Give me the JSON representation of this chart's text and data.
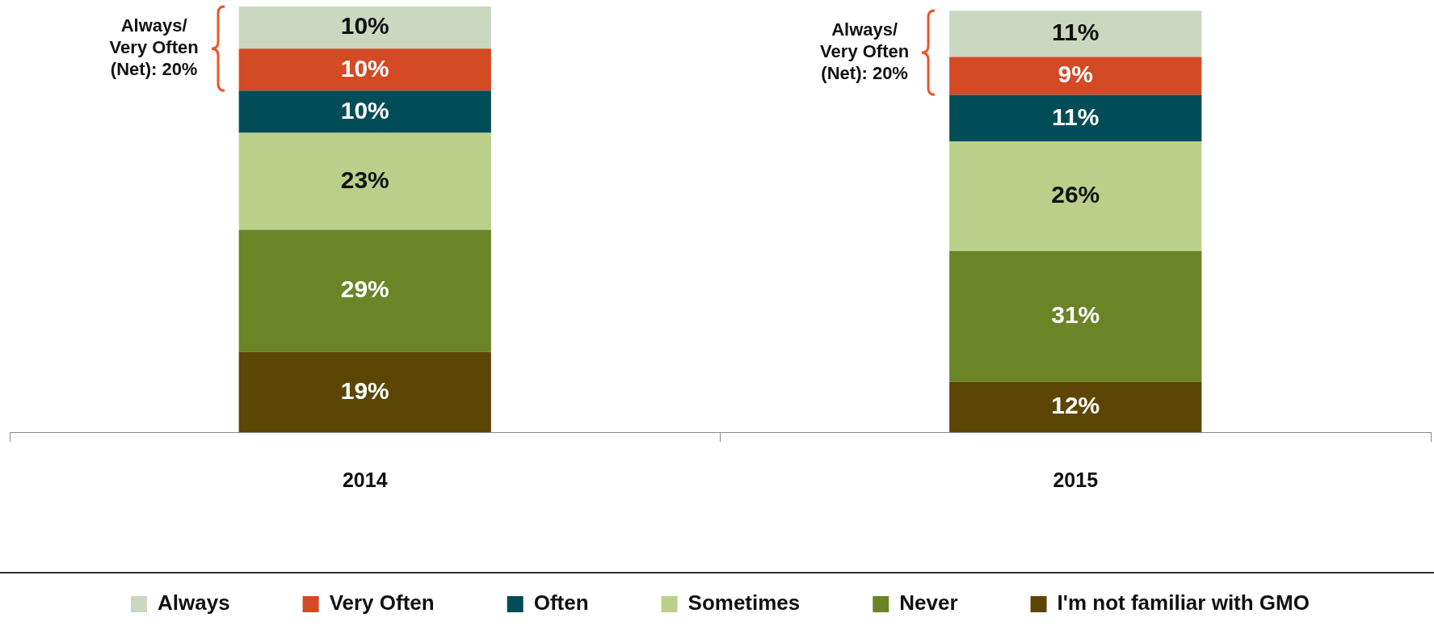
{
  "chart_data": {
    "type": "bar",
    "stacked": true,
    "categories": [
      "2014",
      "2015"
    ],
    "series": [
      {
        "name": "I'm not familiar with GMO",
        "color": "#5c4505",
        "values": [
          19,
          12
        ],
        "value_labels": [
          "19%",
          "12%"
        ]
      },
      {
        "name": "Never",
        "color": "#6a8426",
        "values": [
          29,
          31
        ],
        "value_labels": [
          "29%",
          "31%"
        ]
      },
      {
        "name": "Sometimes",
        "color": "#bccf8a",
        "values": [
          23,
          26
        ],
        "value_labels": [
          "23%",
          "26%"
        ]
      },
      {
        "name": "Often",
        "color": "#004d57",
        "values": [
          10,
          11
        ],
        "value_labels": [
          "10%",
          "11%"
        ]
      },
      {
        "name": "Very Often",
        "color": "#d34a25",
        "values": [
          10,
          9
        ],
        "value_labels": [
          "10%",
          "9%"
        ]
      },
      {
        "name": "Always",
        "color": "#ccd7c0",
        "values": [
          10,
          11
        ],
        "value_labels": [
          "10%",
          "11%"
        ]
      }
    ],
    "annotations": [
      "Always/ Very Often (Net): 20%",
      "Always/ Very Often (Net): 20%"
    ],
    "legend": "bottom"
  }
}
